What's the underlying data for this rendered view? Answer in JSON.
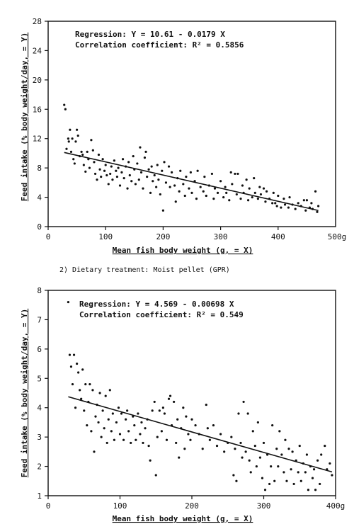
{
  "chart_data": [
    {
      "type": "scatter",
      "heading": "",
      "xlabel": "Mean fish body weight (g, = X)",
      "ylabel": "Feed intake (% body weight/day, = Y)",
      "xlim": [
        0,
        500
      ],
      "ylim": [
        0,
        28
      ],
      "x_ticks": [
        0,
        100,
        200,
        300,
        400
      ],
      "x_tick_labels": [
        "0",
        "100",
        "200",
        "300",
        "400"
      ],
      "x_end_label": "500g",
      "y_ticks": [
        0,
        4,
        8,
        12,
        16,
        20,
        24,
        28
      ],
      "y_tick_labels": [
        "0",
        "4",
        "8",
        "12",
        "16",
        "20",
        "24",
        "28"
      ],
      "annotation_lines": [
        "Regression: Y = 10.61 - 0.0179 X",
        "Correlation coefficient: R² = 0.5856"
      ],
      "regression": {
        "intercept": 10.61,
        "slope": -0.0179,
        "x_range": [
          28,
          470
        ]
      },
      "points": [
        [
          28,
          16.6
        ],
        [
          30,
          16.0
        ],
        [
          32,
          10.6
        ],
        [
          35,
          12.0
        ],
        [
          36,
          11.6
        ],
        [
          38,
          13.2
        ],
        [
          40,
          10.2
        ],
        [
          42,
          12.0
        ],
        [
          44,
          9.2
        ],
        [
          46,
          8.6
        ],
        [
          48,
          11.6
        ],
        [
          50,
          13.2
        ],
        [
          52,
          12.4
        ],
        [
          55,
          9.6
        ],
        [
          58,
          10.2
        ],
        [
          60,
          9.8
        ],
        [
          62,
          8.4
        ],
        [
          65,
          7.5
        ],
        [
          68,
          10.2
        ],
        [
          70,
          9.2
        ],
        [
          72,
          8.0
        ],
        [
          75,
          11.8
        ],
        [
          78,
          10.4
        ],
        [
          80,
          8.8
        ],
        [
          82,
          7.2
        ],
        [
          85,
          6.4
        ],
        [
          88,
          9.8
        ],
        [
          90,
          7.8
        ],
        [
          92,
          6.8
        ],
        [
          95,
          9.2
        ],
        [
          98,
          7.6
        ],
        [
          100,
          8.4
        ],
        [
          102,
          7.0
        ],
        [
          105,
          5.8
        ],
        [
          108,
          7.2
        ],
        [
          110,
          8.2
        ],
        [
          112,
          6.4
        ],
        [
          115,
          9.0
        ],
        [
          118,
          7.6
        ],
        [
          120,
          6.8
        ],
        [
          122,
          8.0
        ],
        [
          125,
          5.6
        ],
        [
          128,
          7.4
        ],
        [
          130,
          9.2
        ],
        [
          132,
          6.6
        ],
        [
          135,
          8.2
        ],
        [
          138,
          5.2
        ],
        [
          140,
          8.8
        ],
        [
          142,
          7.0
        ],
        [
          145,
          6.2
        ],
        [
          148,
          9.6
        ],
        [
          150,
          7.8
        ],
        [
          152,
          5.8
        ],
        [
          155,
          8.6
        ],
        [
          158,
          6.4
        ],
        [
          160,
          10.8
        ],
        [
          162,
          7.4
        ],
        [
          165,
          5.2
        ],
        [
          168,
          9.4
        ],
        [
          170,
          10.2
        ],
        [
          172,
          6.8
        ],
        [
          175,
          7.8
        ],
        [
          178,
          4.6
        ],
        [
          180,
          8.2
        ],
        [
          182,
          6.2
        ],
        [
          185,
          7.0
        ],
        [
          188,
          5.4
        ],
        [
          190,
          8.4
        ],
        [
          192,
          6.4
        ],
        [
          195,
          4.4
        ],
        [
          198,
          7.6
        ],
        [
          200,
          2.2
        ],
        [
          202,
          8.8
        ],
        [
          205,
          6.0
        ],
        [
          210,
          8.2
        ],
        [
          212,
          5.4
        ],
        [
          215,
          7.4
        ],
        [
          220,
          5.6
        ],
        [
          222,
          3.4
        ],
        [
          225,
          6.6
        ],
        [
          228,
          4.8
        ],
        [
          230,
          7.6
        ],
        [
          235,
          5.8
        ],
        [
          238,
          4.2
        ],
        [
          240,
          6.8
        ],
        [
          245,
          5.2
        ],
        [
          248,
          7.4
        ],
        [
          250,
          4.6
        ],
        [
          255,
          6.2
        ],
        [
          258,
          3.8
        ],
        [
          260,
          7.6
        ],
        [
          265,
          5.4
        ],
        [
          270,
          4.8
        ],
        [
          272,
          6.8
        ],
        [
          275,
          4.2
        ],
        [
          280,
          5.6
        ],
        [
          285,
          7.2
        ],
        [
          288,
          3.8
        ],
        [
          290,
          5.2
        ],
        [
          295,
          4.6
        ],
        [
          300,
          6.2
        ],
        [
          305,
          4.0
        ],
        [
          308,
          5.4
        ],
        [
          310,
          4.6
        ],
        [
          315,
          3.6
        ],
        [
          318,
          7.4
        ],
        [
          320,
          5.8
        ],
        [
          325,
          7.2
        ],
        [
          328,
          4.4
        ],
        [
          330,
          7.2
        ],
        [
          335,
          3.8
        ],
        [
          338,
          5.6
        ],
        [
          340,
          4.6
        ],
        [
          345,
          6.4
        ],
        [
          348,
          3.6
        ],
        [
          350,
          5.2
        ],
        [
          355,
          4.0
        ],
        [
          358,
          6.6
        ],
        [
          360,
          4.6
        ],
        [
          365,
          3.8
        ],
        [
          368,
          5.4
        ],
        [
          370,
          4.4
        ],
        [
          375,
          5.2
        ],
        [
          378,
          3.4
        ],
        [
          380,
          4.8
        ],
        [
          385,
          3.8
        ],
        [
          390,
          3.2
        ],
        [
          392,
          4.6
        ],
        [
          395,
          3.2
        ],
        [
          398,
          2.8
        ],
        [
          400,
          4.2
        ],
        [
          405,
          2.6
        ],
        [
          410,
          3.8
        ],
        [
          412,
          3.0
        ],
        [
          418,
          2.6
        ],
        [
          420,
          4.0
        ],
        [
          425,
          3.0
        ],
        [
          430,
          2.4
        ],
        [
          435,
          3.2
        ],
        [
          440,
          2.8
        ],
        [
          445,
          3.6
        ],
        [
          448,
          2.2
        ],
        [
          450,
          3.6
        ],
        [
          455,
          2.6
        ],
        [
          458,
          3.2
        ],
        [
          460,
          2.4
        ],
        [
          465,
          4.8
        ],
        [
          468,
          2.0
        ],
        [
          470,
          2.8
        ]
      ]
    },
    {
      "type": "scatter",
      "heading": "2) Dietary treatment: Moist pellet (GPR)",
      "xlabel": "Mean fish body weight (g, = X)",
      "ylabel": "Feed intake (% body weight/day, = Y)",
      "xlim": [
        0,
        400
      ],
      "ylim": [
        1,
        8
      ],
      "x_ticks": [
        0,
        100,
        200,
        300,
        400
      ],
      "x_tick_labels": [
        "0",
        "100",
        "200",
        "300",
        "400g"
      ],
      "x_end_label": "",
      "y_ticks": [
        1,
        2,
        3,
        4,
        5,
        6,
        7,
        8
      ],
      "y_tick_labels": [
        "1",
        "2",
        "3",
        "4",
        "5",
        "6",
        "7",
        "8"
      ],
      "annotation_lines": [
        "Regression: Y = 4.569 - 0.00698 X",
        "Correlation coefficient: R² = 0.549"
      ],
      "regression": {
        "intercept": 4.569,
        "slope": -0.00698,
        "x_range": [
          28,
          395
        ]
      },
      "points": [
        [
          28,
          7.6
        ],
        [
          30,
          5.8
        ],
        [
          32,
          5.4
        ],
        [
          34,
          4.8
        ],
        [
          36,
          5.8
        ],
        [
          38,
          4.0
        ],
        [
          40,
          5.5
        ],
        [
          42,
          5.2
        ],
        [
          44,
          4.6
        ],
        [
          46,
          4.3
        ],
        [
          48,
          5.3
        ],
        [
          50,
          3.9
        ],
        [
          52,
          4.8
        ],
        [
          54,
          3.4
        ],
        [
          56,
          4.2
        ],
        [
          58,
          4.8
        ],
        [
          60,
          3.2
        ],
        [
          62,
          4.6
        ],
        [
          64,
          2.5
        ],
        [
          66,
          3.7
        ],
        [
          68,
          4.1
        ],
        [
          70,
          3.5
        ],
        [
          72,
          4.5
        ],
        [
          74,
          3.0
        ],
        [
          76,
          3.9
        ],
        [
          78,
          3.3
        ],
        [
          80,
          4.4
        ],
        [
          82,
          2.8
        ],
        [
          84,
          3.6
        ],
        [
          86,
          4.6
        ],
        [
          88,
          3.2
        ],
        [
          90,
          3.8
        ],
        [
          92,
          2.9
        ],
        [
          95,
          3.5
        ],
        [
          98,
          4.0
        ],
        [
          100,
          3.1
        ],
        [
          102,
          3.8
        ],
        [
          105,
          2.9
        ],
        [
          108,
          3.6
        ],
        [
          110,
          3.9
        ],
        [
          112,
          3.2
        ],
        [
          115,
          2.8
        ],
        [
          118,
          3.7
        ],
        [
          120,
          3.4
        ],
        [
          122,
          2.9
        ],
        [
          125,
          3.8
        ],
        [
          128,
          3.1
        ],
        [
          130,
          3.5
        ],
        [
          132,
          2.8
        ],
        [
          135,
          3.3
        ],
        [
          138,
          3.6
        ],
        [
          140,
          2.7
        ],
        [
          142,
          2.2
        ],
        [
          145,
          3.9
        ],
        [
          148,
          4.2
        ],
        [
          150,
          1.7
        ],
        [
          152,
          3.0
        ],
        [
          155,
          3.9
        ],
        [
          158,
          3.2
        ],
        [
          160,
          4.0
        ],
        [
          162,
          3.8
        ],
        [
          165,
          2.9
        ],
        [
          168,
          4.3
        ],
        [
          170,
          4.4
        ],
        [
          172,
          3.4
        ],
        [
          175,
          4.2
        ],
        [
          178,
          2.8
        ],
        [
          180,
          3.6
        ],
        [
          182,
          2.3
        ],
        [
          185,
          3.3
        ],
        [
          188,
          4.0
        ],
        [
          190,
          2.6
        ],
        [
          192,
          3.7
        ],
        [
          195,
          3.1
        ],
        [
          198,
          2.9
        ],
        [
          200,
          3.6
        ],
        [
          205,
          3.4
        ],
        [
          210,
          3.1
        ],
        [
          215,
          2.6
        ],
        [
          220,
          4.1
        ],
        [
          222,
          3.3
        ],
        [
          225,
          2.9
        ],
        [
          230,
          3.4
        ],
        [
          235,
          2.7
        ],
        [
          240,
          3.1
        ],
        [
          245,
          2.5
        ],
        [
          250,
          2.8
        ],
        [
          255,
          3.0
        ],
        [
          258,
          1.7
        ],
        [
          260,
          2.6
        ],
        [
          262,
          1.5
        ],
        [
          265,
          3.8
        ],
        [
          268,
          2.8
        ],
        [
          270,
          2.3
        ],
        [
          272,
          4.2
        ],
        [
          275,
          2.5
        ],
        [
          278,
          3.8
        ],
        [
          280,
          2.2
        ],
        [
          282,
          1.8
        ],
        [
          285,
          3.2
        ],
        [
          288,
          2.7
        ],
        [
          290,
          2.0
        ],
        [
          292,
          3.5
        ],
        [
          295,
          2.3
        ],
        [
          298,
          1.6
        ],
        [
          300,
          2.8
        ],
        [
          302,
          1.2
        ],
        [
          305,
          2.4
        ],
        [
          308,
          1.4
        ],
        [
          310,
          2.0
        ],
        [
          312,
          3.4
        ],
        [
          315,
          1.5
        ],
        [
          318,
          2.6
        ],
        [
          320,
          2.0
        ],
        [
          322,
          3.2
        ],
        [
          325,
          2.4
        ],
        [
          328,
          1.8
        ],
        [
          330,
          2.9
        ],
        [
          332,
          1.5
        ],
        [
          335,
          2.6
        ],
        [
          338,
          1.9
        ],
        [
          340,
          2.5
        ],
        [
          342,
          1.4
        ],
        [
          345,
          2.2
        ],
        [
          348,
          1.8
        ],
        [
          350,
          2.7
        ],
        [
          352,
          1.5
        ],
        [
          355,
          2.1
        ],
        [
          358,
          1.8
        ],
        [
          360,
          2.4
        ],
        [
          362,
          1.2
        ],
        [
          365,
          2.0
        ],
        [
          368,
          1.6
        ],
        [
          370,
          1.9
        ],
        [
          372,
          1.2
        ],
        [
          375,
          2.2
        ],
        [
          378,
          1.4
        ],
        [
          380,
          2.4
        ],
        [
          385,
          2.7
        ],
        [
          388,
          1.9
        ],
        [
          392,
          2.1
        ],
        [
          395,
          1.7
        ]
      ]
    }
  ]
}
